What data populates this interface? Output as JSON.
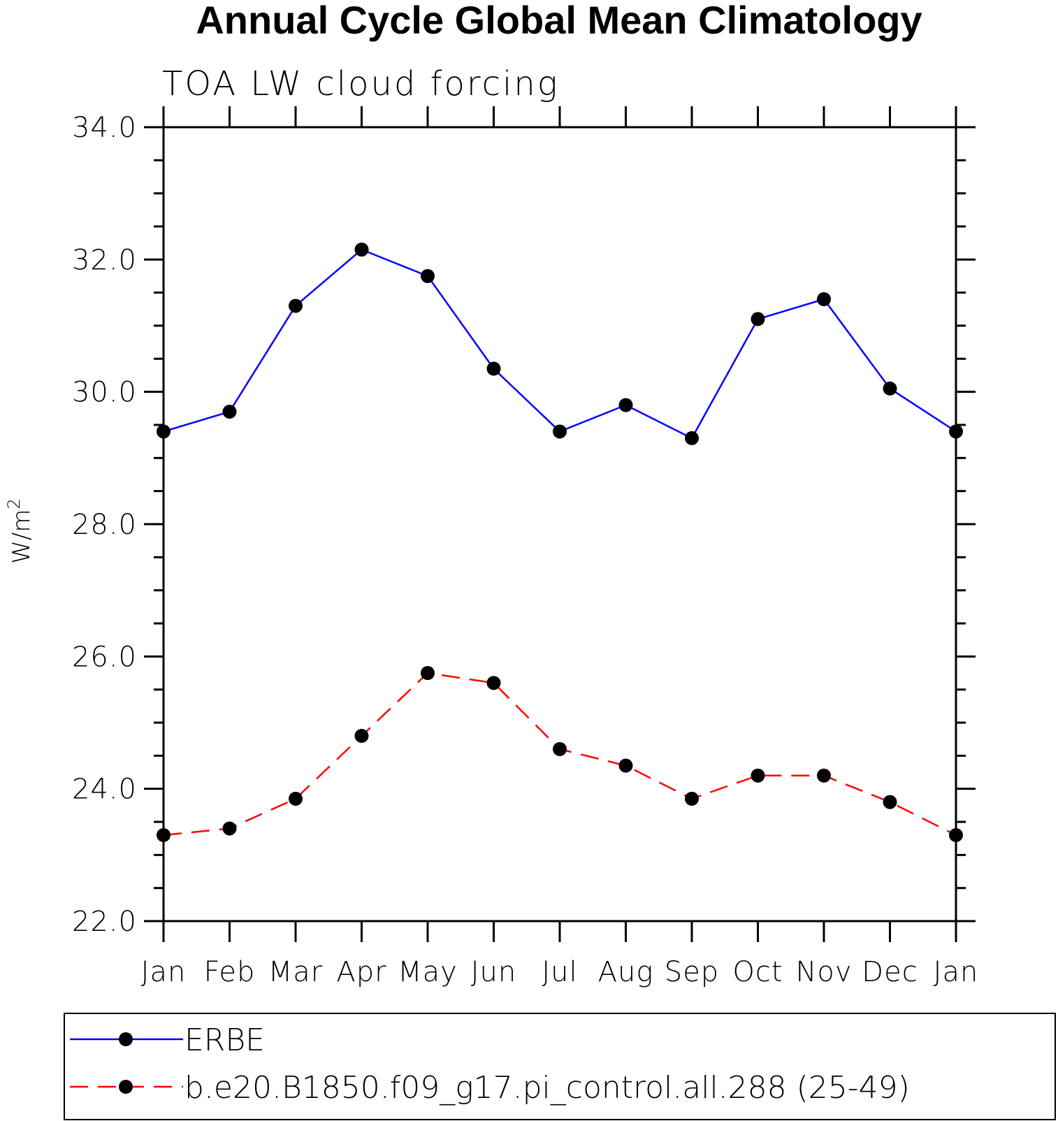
{
  "chart_data": {
    "type": "line",
    "title": "Annual Cycle Global Mean Climatology",
    "subtitle": "TOA LW cloud forcing",
    "ylabel": "W/m",
    "ylabel_sup": "2",
    "ylim": [
      22.0,
      34.0
    ],
    "yticks": [
      "22.0",
      "24.0",
      "26.0",
      "28.0",
      "30.0",
      "32.0",
      "34.0"
    ],
    "categories": [
      "Jan",
      "Feb",
      "Mar",
      "Apr",
      "May",
      "Jun",
      "Jul",
      "Aug",
      "Sep",
      "Oct",
      "Nov",
      "Dec",
      "Jan"
    ],
    "grid": false,
    "legend_position": "bottom",
    "series": [
      {
        "name": "ERBE",
        "color": "#0000ff",
        "line_style": "solid",
        "marker": "filled-circle",
        "values": [
          29.4,
          29.7,
          31.3,
          32.15,
          31.75,
          30.35,
          29.4,
          29.8,
          29.3,
          31.1,
          31.4,
          30.05,
          29.4
        ]
      },
      {
        "name": "b.e20.B1850.f09_g17.pi_control.all.288 (25-49)",
        "color": "#ff0000",
        "line_style": "dashed",
        "marker": "filled-circle",
        "values": [
          23.3,
          23.4,
          23.85,
          24.8,
          25.75,
          25.6,
          24.6,
          24.35,
          23.85,
          24.2,
          24.2,
          23.8,
          23.3
        ]
      }
    ]
  }
}
